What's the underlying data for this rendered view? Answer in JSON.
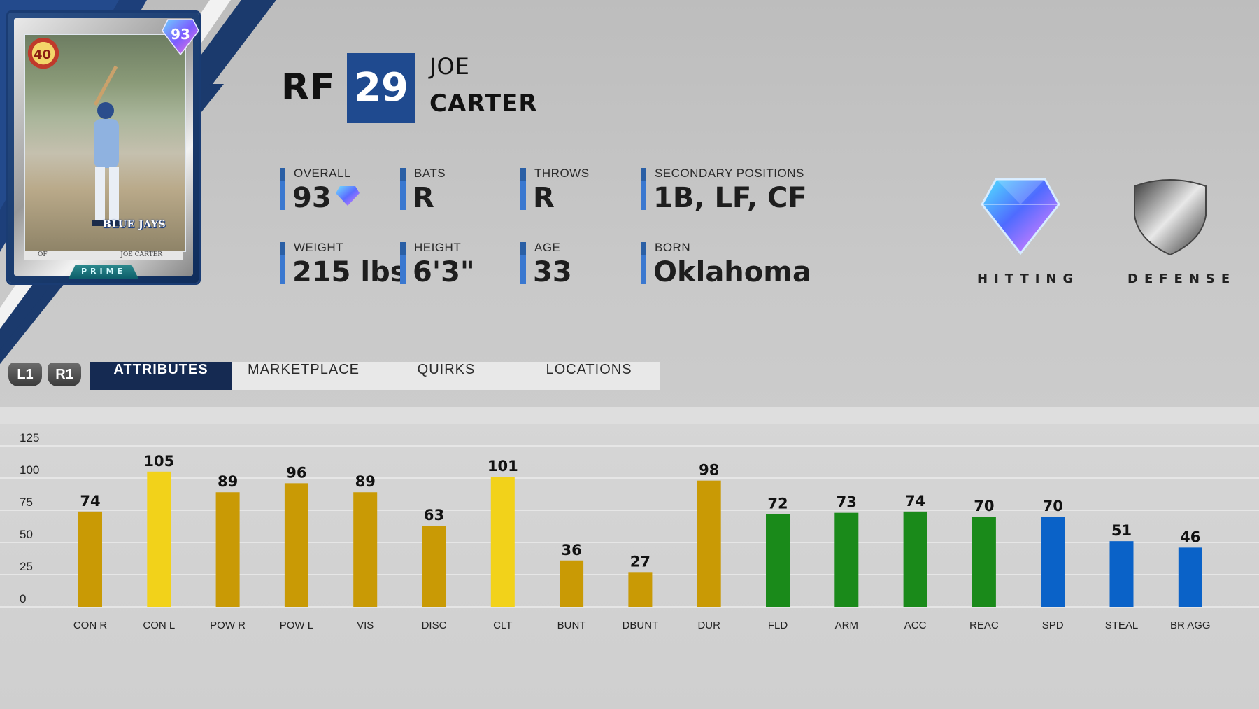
{
  "card": {
    "rating": "93",
    "logo_text": "40",
    "team": "BLUE JAYS",
    "position": "OF",
    "name": "JOE CARTER",
    "series": "PRIME"
  },
  "player": {
    "position": "RF",
    "number": "29",
    "first_name": "JOE",
    "last_name": "CARTER"
  },
  "stats": [
    {
      "label": "OVERALL",
      "value": "93"
    },
    {
      "label": "BATS",
      "value": "R"
    },
    {
      "label": "THROWS",
      "value": "R"
    },
    {
      "label": "SECONDARY POSITIONS",
      "value": "1B, LF, CF"
    },
    {
      "label": "WEIGHT",
      "value": "215 lbs"
    },
    {
      "label": "HEIGHT",
      "value": "6'3\""
    },
    {
      "label": "AGE",
      "value": "33"
    },
    {
      "label": "BORN",
      "value": "Oklahoma"
    }
  ],
  "badges": {
    "hitting": "HITTING",
    "defense": "DEFENSE"
  },
  "bumpers": {
    "left": "L1",
    "right": "R1"
  },
  "tabs": [
    "ATTRIBUTES",
    "MARKETPLACE",
    "QUIRKS",
    "LOCATIONS"
  ],
  "active_tab": "ATTRIBUTES",
  "colors": {
    "contact_power": "#c99a05",
    "elite": "#f2d21a",
    "fielding": "#1a8a1a",
    "running": "#0a62c8",
    "jersey": "#1f4a8f",
    "tab_active": "#152a52"
  },
  "chart_data": {
    "type": "bar",
    "ylim": [
      0,
      125
    ],
    "yticks": [
      0,
      25,
      50,
      75,
      100,
      125
    ],
    "grid": true,
    "categories": [
      "CON R",
      "CON L",
      "POW R",
      "POW L",
      "VIS",
      "DISC",
      "CLT",
      "BUNT",
      "DBUNT",
      "DUR",
      "FLD",
      "ARM",
      "ACC",
      "REAC",
      "SPD",
      "STEAL",
      "BR AGG"
    ],
    "values": [
      74,
      105,
      89,
      96,
      89,
      63,
      101,
      36,
      27,
      98,
      72,
      73,
      74,
      70,
      70,
      51,
      46
    ],
    "bar_colors": [
      "#c99a05",
      "#f2d21a",
      "#c99a05",
      "#c99a05",
      "#c99a05",
      "#c99a05",
      "#f2d21a",
      "#c99a05",
      "#c99a05",
      "#c99a05",
      "#1a8a1a",
      "#1a8a1a",
      "#1a8a1a",
      "#1a8a1a",
      "#0a62c8",
      "#0a62c8",
      "#0a62c8"
    ]
  }
}
